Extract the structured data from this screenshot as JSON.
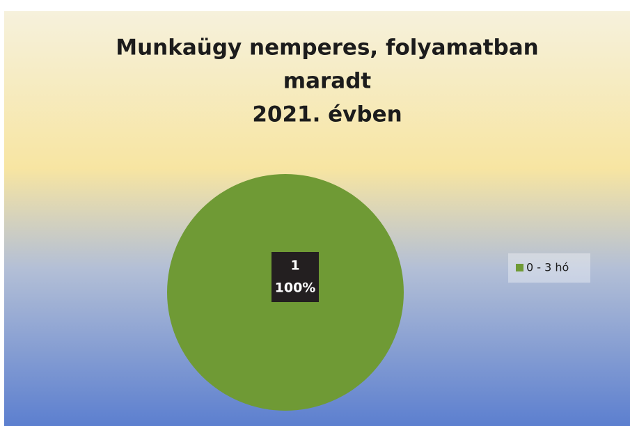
{
  "chart_data": {
    "type": "pie",
    "title": [
      "Munkaügy nemperes, folyamatban",
      "maradt",
      "2021. évben"
    ],
    "categories": [
      "0 - 3 hó"
    ],
    "values": [
      1
    ],
    "percent_labels": [
      "100%"
    ],
    "colors": [
      "#6f9a35"
    ],
    "legend": "right"
  }
}
